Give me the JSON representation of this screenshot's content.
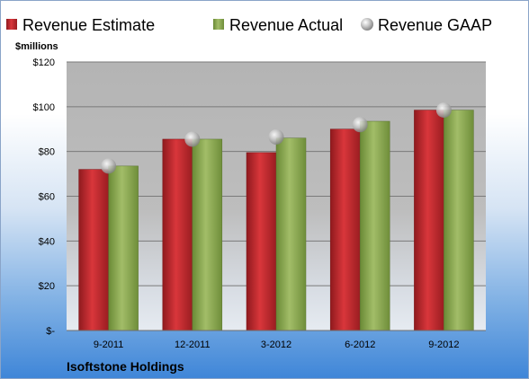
{
  "chart_data": {
    "type": "bar",
    "title": "",
    "ylabel": "$millions",
    "xlabel": "",
    "footer_label": "Isoftstone Holdings",
    "categories": [
      "9-2011",
      "12-2011",
      "3-2012",
      "6-2012",
      "9-2012"
    ],
    "ylim": [
      0,
      120
    ],
    "y_ticks": [
      {
        "value": 0,
        "label": "$-"
      },
      {
        "value": 20,
        "label": "$20"
      },
      {
        "value": 40,
        "label": "$40"
      },
      {
        "value": 60,
        "label": "$60"
      },
      {
        "value": 80,
        "label": "$80"
      },
      {
        "value": 100,
        "label": "$100"
      },
      {
        "value": 120,
        "label": "$120"
      }
    ],
    "series": [
      {
        "name": "Revenue Estimate",
        "kind": "bar",
        "color": "#c0272d",
        "values": [
          72,
          85.5,
          79.5,
          90,
          98.5
        ]
      },
      {
        "name": "Revenue Actual",
        "kind": "bar",
        "color": "#8aa84f",
        "values": [
          73.5,
          85.5,
          86,
          93.5,
          98.5
        ]
      },
      {
        "name": "Revenue GAAP",
        "kind": "marker",
        "color": "#b8b8b8",
        "values": [
          73.5,
          85.5,
          86.5,
          92,
          98.5
        ]
      }
    ],
    "grid": true,
    "legend_position": "top"
  }
}
